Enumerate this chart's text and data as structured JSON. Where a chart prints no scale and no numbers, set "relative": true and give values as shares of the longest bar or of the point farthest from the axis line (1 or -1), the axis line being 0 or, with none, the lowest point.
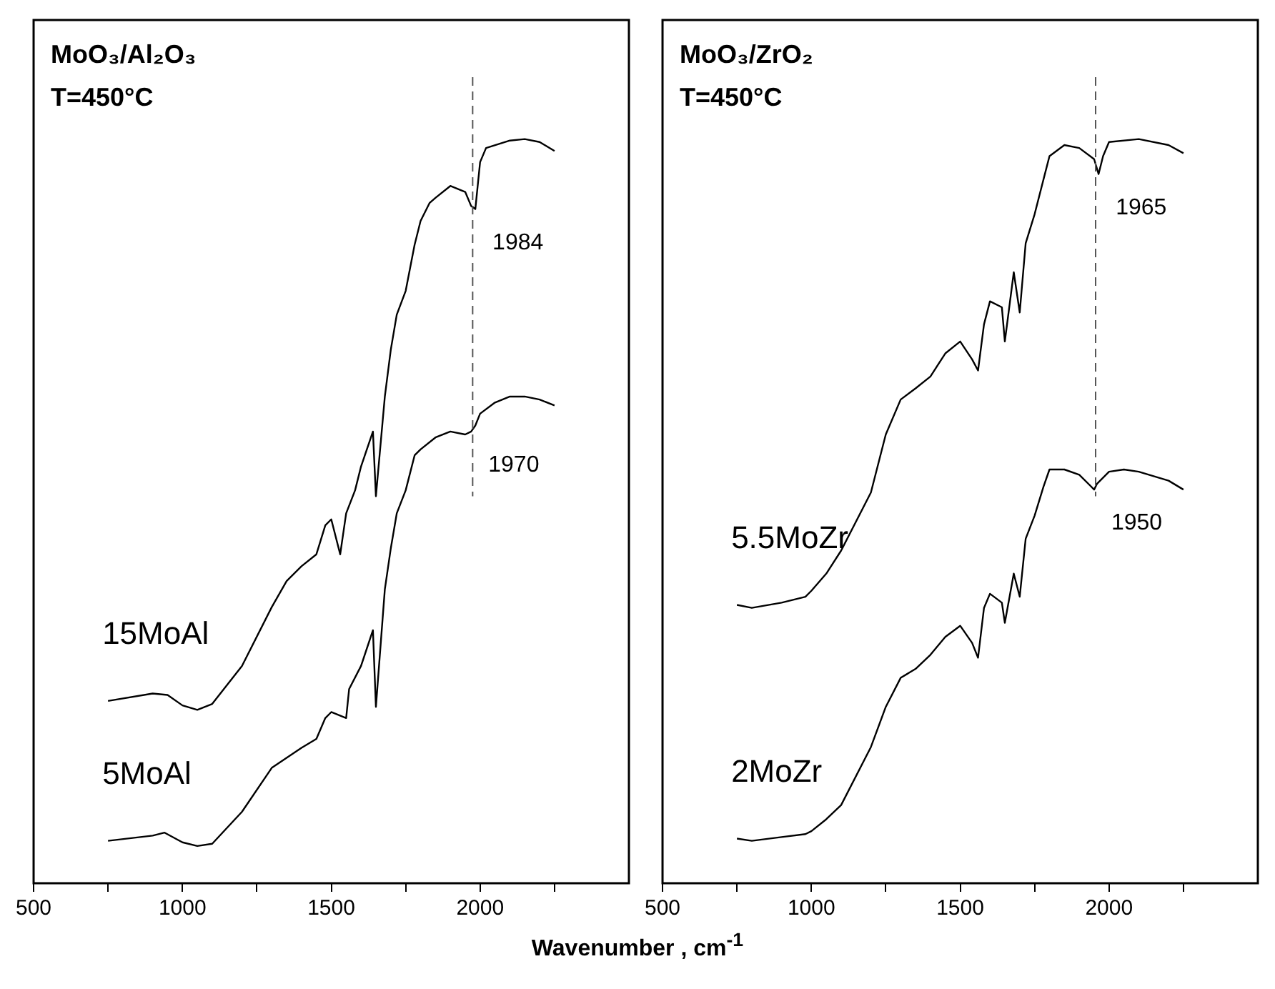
{
  "chart_data": [
    {
      "type": "line",
      "title": "MoO₃/Al₂O₃",
      "subtitle": "T=450°C",
      "xlabel": "Wavenumber , cm$^{-1}$",
      "relative": true,
      "legend": false,
      "grid": false,
      "marker": "none",
      "tick_labels": "x",
      "xlim": [
        500,
        2500
      ],
      "xticks": [
        500,
        {
          "value": 750,
          "label": null
        },
        1000,
        {
          "value": 1250,
          "label": null
        },
        1500,
        {
          "value": 1750,
          "label": null
        },
        2000,
        {
          "value": 2250,
          "label": null
        }
      ],
      "series": [
        {
          "name": "15MoAl",
          "color": "#000000",
          "x": [
            750,
            900,
            950,
            1000,
            1050,
            1100,
            1200,
            1300,
            1350,
            1400,
            1450,
            1480,
            1500,
            1530,
            1550,
            1580,
            1600,
            1640,
            1650,
            1680,
            1700,
            1720,
            1750,
            1780,
            1800,
            1830,
            1850,
            1900,
            1950,
            1970,
            1984,
            2000,
            2020,
            2100,
            2150,
            2200,
            2250
          ],
          "values": [
            0.245,
            0.255,
            0.253,
            0.239,
            0.233,
            0.241,
            0.292,
            0.371,
            0.406,
            0.426,
            0.442,
            0.481,
            0.489,
            0.442,
            0.497,
            0.528,
            0.56,
            0.607,
            0.52,
            0.654,
            0.717,
            0.764,
            0.796,
            0.858,
            0.89,
            0.914,
            0.921,
            0.937,
            0.929,
            0.91,
            0.906,
            0.969,
            0.988,
            0.998,
            1.0,
            0.996,
            0.984
          ]
        },
        {
          "name": "5MoAl",
          "color": "#000000",
          "x": [
            750,
            900,
            940,
            1000,
            1050,
            1100,
            1200,
            1300,
            1400,
            1450,
            1480,
            1500,
            1550,
            1560,
            1600,
            1640,
            1650,
            1680,
            1700,
            1720,
            1750,
            1780,
            1800,
            1850,
            1900,
            1950,
            1970,
            1984,
            2000,
            2050,
            2100,
            2150,
            2200,
            2250
          ],
          "values": [
            0.057,
            0.064,
            0.068,
            0.055,
            0.05,
            0.053,
            0.096,
            0.155,
            0.182,
            0.194,
            0.222,
            0.23,
            0.222,
            0.261,
            0.292,
            0.34,
            0.237,
            0.395,
            0.45,
            0.497,
            0.528,
            0.575,
            0.583,
            0.599,
            0.607,
            0.603,
            0.607,
            0.615,
            0.631,
            0.646,
            0.654,
            0.654,
            0.65,
            0.642
          ]
        }
      ],
      "ref_lines": [
        {
          "axis": "x",
          "value": 1975,
          "line_style": "dashed",
          "color": "#555555"
        }
      ],
      "annotations": [
        {
          "text": "1984",
          "x": 1984,
          "y": 0.906
        },
        {
          "text": "1970",
          "x": 1970,
          "y": 0.607
        }
      ]
    },
    {
      "type": "line",
      "title": "MoO₃/ZrO₂",
      "subtitle": "T=450°C",
      "relative": true,
      "legend": false,
      "grid": false,
      "marker": "none",
      "tick_labels": "x",
      "xlim": [
        500,
        2500
      ],
      "xticks": [
        500,
        {
          "value": 750,
          "label": null
        },
        1000,
        {
          "value": 1250,
          "label": null
        },
        1500,
        {
          "value": 1750,
          "label": null
        },
        2000,
        {
          "value": 2250,
          "label": null
        }
      ],
      "series": [
        {
          "name": "5.5MoZr",
          "color": "#000000",
          "x": [
            750,
            800,
            900,
            980,
            1000,
            1050,
            1100,
            1200,
            1250,
            1300,
            1350,
            1400,
            1450,
            1500,
            1540,
            1560,
            1580,
            1600,
            1640,
            1650,
            1680,
            1700,
            1720,
            1750,
            1780,
            1800,
            1850,
            1900,
            1950,
            1965,
            1980,
            2000,
            2100,
            2200,
            2250
          ],
          "values": [
            0.374,
            0.37,
            0.377,
            0.385,
            0.393,
            0.416,
            0.447,
            0.525,
            0.603,
            0.65,
            0.665,
            0.681,
            0.712,
            0.728,
            0.704,
            0.689,
            0.751,
            0.782,
            0.774,
            0.728,
            0.821,
            0.767,
            0.86,
            0.899,
            0.946,
            0.977,
            0.992,
            0.988,
            0.973,
            0.953,
            0.977,
            0.996,
            1.0,
            0.992,
            0.981
          ]
        },
        {
          "name": "2MoZr",
          "color": "#000000",
          "x": [
            750,
            800,
            900,
            980,
            1000,
            1050,
            1100,
            1200,
            1250,
            1300,
            1350,
            1400,
            1450,
            1500,
            1540,
            1560,
            1580,
            1600,
            1640,
            1650,
            1680,
            1700,
            1720,
            1750,
            1780,
            1800,
            1850,
            1900,
            1950,
            1960,
            2000,
            2050,
            2100,
            2200,
            2250
          ],
          "values": [
            0.06,
            0.057,
            0.062,
            0.066,
            0.07,
            0.086,
            0.105,
            0.183,
            0.237,
            0.276,
            0.288,
            0.307,
            0.331,
            0.346,
            0.323,
            0.303,
            0.37,
            0.389,
            0.377,
            0.35,
            0.416,
            0.385,
            0.463,
            0.494,
            0.533,
            0.556,
            0.556,
            0.549,
            0.529,
            0.537,
            0.553,
            0.556,
            0.553,
            0.541,
            0.529
          ]
        }
      ],
      "ref_lines": [
        {
          "axis": "x",
          "value": 1955,
          "line_style": "dashed",
          "color": "#555555"
        }
      ],
      "annotations": [
        {
          "text": "1965",
          "x": 1965,
          "y": 0.953
        },
        {
          "text": "1950",
          "x": 1950,
          "y": 0.529
        }
      ]
    }
  ]
}
